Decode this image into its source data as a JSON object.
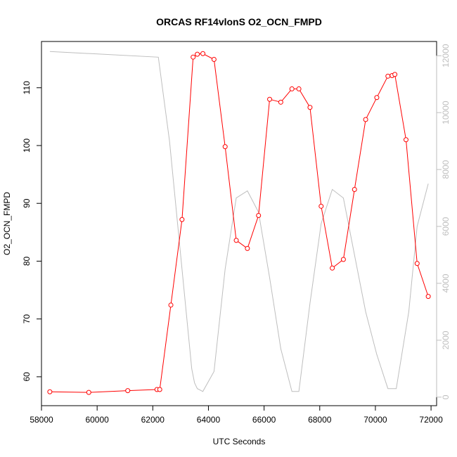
{
  "chart_data": {
    "type": "line",
    "title": "ORCAS RF14vlonS O2_OCN_FMPD",
    "xlabel": "UTC Seconds",
    "ylabel": "O2_OCN_FMPD",
    "xlim": [
      58000,
      72200
    ],
    "ylim": [
      55,
      118
    ],
    "y2lim": [
      -300,
      12500
    ],
    "grid": false,
    "x_ticks": [
      58000,
      60000,
      62000,
      64000,
      66000,
      68000,
      70000,
      72000
    ],
    "y_ticks": [
      60,
      70,
      80,
      90,
      100,
      110
    ],
    "y2_ticks": [
      0,
      2000,
      4000,
      6000,
      8000,
      10000,
      12000
    ],
    "colors": {
      "primary": "#ff0000",
      "secondary": "#bebebe"
    },
    "series": [
      {
        "axis": "left",
        "style": "line-with-open-circles",
        "x": [
          58300,
          59700,
          61100,
          62150,
          62250,
          62650,
          63050,
          63450,
          63600,
          63800,
          64200,
          64600,
          65000,
          65400,
          65800,
          66200,
          66600,
          67000,
          67250,
          67650,
          68050,
          68450,
          68850,
          69250,
          69650,
          70050,
          70450,
          70600,
          70700,
          71100,
          71500,
          71900
        ],
        "values": [
          57.4,
          57.3,
          57.6,
          57.8,
          57.8,
          72.4,
          87.2,
          115.3,
          115.8,
          115.9,
          114.9,
          99.8,
          83.6,
          82.2,
          87.9,
          108.0,
          107.5,
          109.8,
          109.8,
          106.6,
          89.5,
          78.8,
          80.3,
          92.4,
          104.5,
          108.3,
          112.0,
          112.1,
          112.3,
          101.0,
          79.6,
          73.9
        ]
      },
      {
        "axis": "right",
        "style": "line",
        "x": [
          58300,
          62200,
          62600,
          63000,
          63400,
          63500,
          63600,
          63800,
          64200,
          64600,
          65000,
          65400,
          65800,
          66200,
          66600,
          67000,
          67250,
          67650,
          68050,
          68450,
          68850,
          69250,
          69650,
          70050,
          70450,
          70750,
          71200,
          71500,
          71900
        ],
        "values": [
          12150,
          11950,
          9000,
          5000,
          1000,
          500,
          300,
          200,
          900,
          4500,
          7000,
          7250,
          6500,
          4200,
          1700,
          200,
          200,
          3300,
          6100,
          7300,
          7000,
          5000,
          3000,
          1500,
          300,
          300,
          3000,
          6000,
          7500
        ]
      }
    ]
  }
}
